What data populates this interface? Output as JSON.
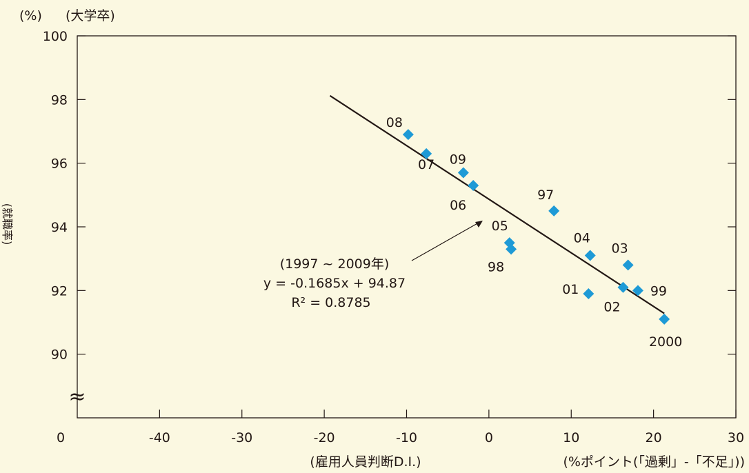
{
  "chart_data": {
    "type": "scatter",
    "y_unit": "(%)",
    "subtitle": "(大学卒)",
    "ylabel": "(就職率)",
    "xlabel_left": "(雇用人員判断D.I.)",
    "xlabel_right": "(%ポイント(「過剰」-「不足」))",
    "xlim": [
      -50,
      30
    ],
    "ylim": [
      88,
      100
    ],
    "y_ticks": [
      90,
      92,
      94,
      96,
      98,
      100
    ],
    "x_ticks": [
      -40,
      -30,
      -20,
      -10,
      0,
      10,
      20,
      30
    ],
    "x_origin_label": "0",
    "axis_break_symbol": "≈",
    "grid": false,
    "point_color": "#1e9ad6",
    "points": [
      {
        "label": "08",
        "x": -9.8,
        "y": 96.9
      },
      {
        "label": "07",
        "x": -7.6,
        "y": 96.3
      },
      {
        "label": "09",
        "x": -3.1,
        "y": 95.7
      },
      {
        "label": "06",
        "x": -1.9,
        "y": 95.3
      },
      {
        "label": "97",
        "x": 7.9,
        "y": 94.5
      },
      {
        "label": "05",
        "x": 2.5,
        "y": 93.5
      },
      {
        "label": "98",
        "x": 2.7,
        "y": 93.3
      },
      {
        "label": "04",
        "x": 12.3,
        "y": 93.1
      },
      {
        "label": "03",
        "x": 16.9,
        "y": 92.8
      },
      {
        "label": "01",
        "x": 12.1,
        "y": 91.9
      },
      {
        "label": "02",
        "x": 16.3,
        "y": 92.1
      },
      {
        "label": "99",
        "x": 18.1,
        "y": 92.0
      },
      {
        "label": "2000",
        "x": 21.3,
        "y": 91.1
      }
    ],
    "trendline": {
      "x": [
        -19.3,
        21.3
      ],
      "y": [
        98.12,
        91.28
      ]
    },
    "annotation": {
      "lines": [
        "(1997 ~ 2009年)",
        "y = -0.1685x + 94.87",
        "R² = 0.8785"
      ]
    }
  }
}
